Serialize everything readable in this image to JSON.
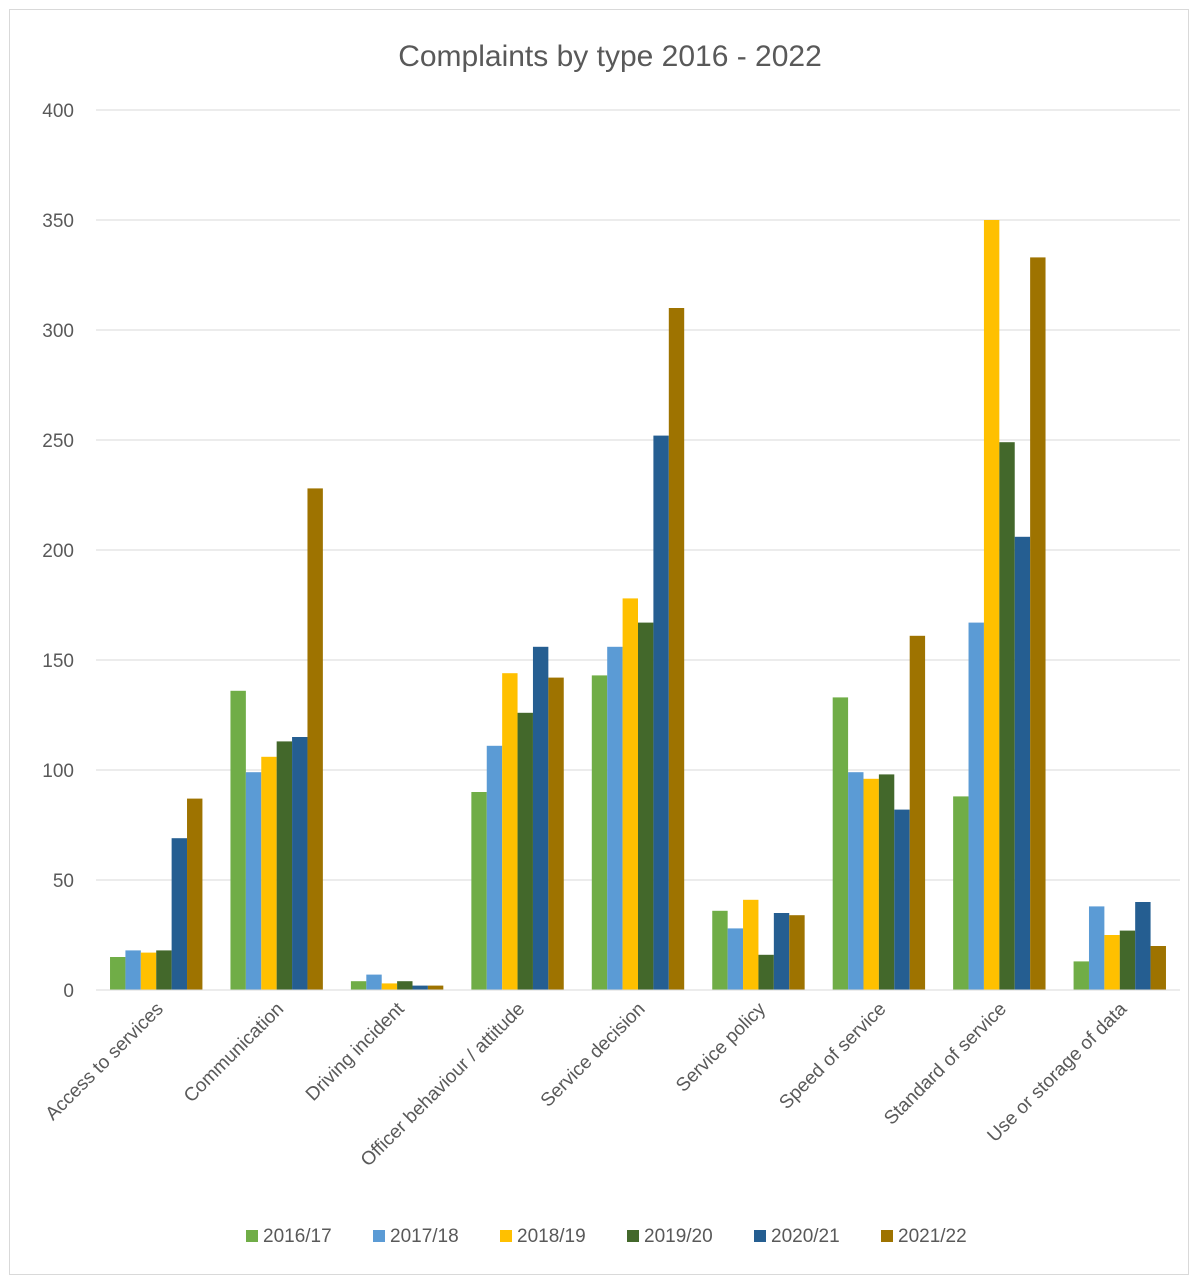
{
  "chart_data": {
    "type": "bar",
    "title": "Complaints by type 2016 - 2022",
    "xlabel": "",
    "ylabel": "",
    "ylim": [
      0,
      400
    ],
    "yticks": [
      0,
      50,
      100,
      150,
      200,
      250,
      300,
      350,
      400
    ],
    "grid": true,
    "legend_position": "bottom",
    "categories": [
      "Access to services",
      "Communication",
      "Driving incident",
      "Officer behaviour / attitude",
      "Service decision",
      "Service policy",
      "Speed of service",
      "Standard of service",
      "Use or storage of data"
    ],
    "series": [
      {
        "name": "2016/17",
        "color": "#70ad47",
        "values": [
          15,
          136,
          4,
          90,
          143,
          36,
          133,
          88,
          13
        ]
      },
      {
        "name": "2017/18",
        "color": "#5b9bd5",
        "values": [
          18,
          99,
          7,
          111,
          156,
          28,
          99,
          167,
          38
        ]
      },
      {
        "name": "2018/19",
        "color": "#ffc000",
        "values": [
          17,
          106,
          3,
          144,
          178,
          41,
          96,
          350,
          25
        ]
      },
      {
        "name": "2019/20",
        "color": "#43682b",
        "values": [
          18,
          113,
          4,
          126,
          167,
          16,
          98,
          249,
          27
        ]
      },
      {
        "name": "2020/21",
        "color": "#255e91",
        "values": [
          69,
          115,
          2,
          156,
          252,
          35,
          82,
          206,
          40
        ]
      },
      {
        "name": "2021/22",
        "color": "#9e7300",
        "values": [
          87,
          228,
          2,
          142,
          310,
          34,
          161,
          333,
          20
        ]
      }
    ]
  }
}
